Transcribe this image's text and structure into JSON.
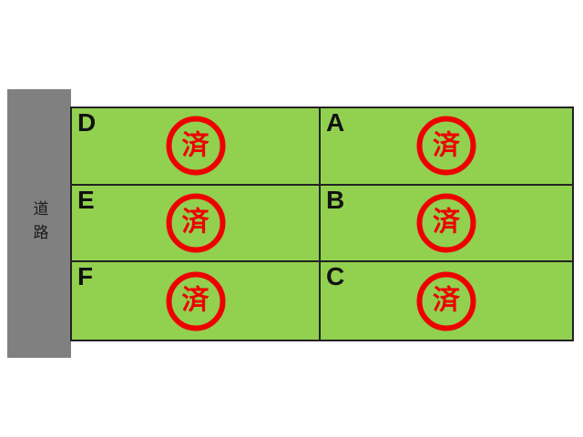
{
  "road": {
    "label": "道路"
  },
  "grid": {
    "cells": [
      {
        "label": "D",
        "stamp": "済"
      },
      {
        "label": "A",
        "stamp": "済"
      },
      {
        "label": "E",
        "stamp": "済"
      },
      {
        "label": "B",
        "stamp": "済"
      },
      {
        "label": "F",
        "stamp": "済"
      },
      {
        "label": "C",
        "stamp": "済"
      }
    ]
  },
  "colors": {
    "plot_green": "#92d050",
    "road_gray": "#808080",
    "stamp_red": "#ee0000",
    "grid_line": "#222222"
  }
}
